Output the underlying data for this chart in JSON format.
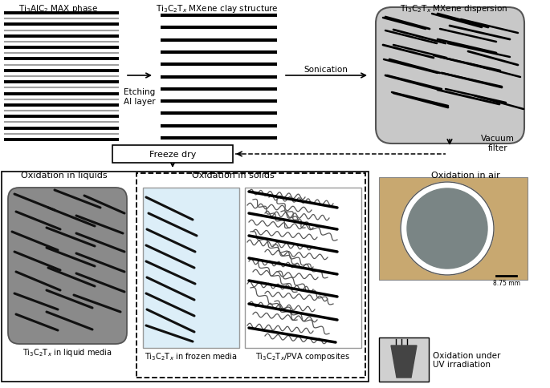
{
  "fig_width": 6.85,
  "fig_height": 4.85,
  "bg_color": "#ffffff",
  "dispersion_bg": "#c8c8c8",
  "liquid_bg": "#8a8a8a",
  "frozen_bg": "#dceef8",
  "title1": "Ti$_3$AlC$_2$ MAX phase",
  "title2": "Ti$_3$C$_2$T$_x$ MXene clay structure",
  "title3": "Ti$_3$C$_2$T$_x$ MXene dispersion",
  "label_etching": "Etching\nAl layer",
  "label_sonication": "Sonication",
  "label_freezedry": "Freeze dry",
  "label_vacuum": "Vacuum\nfilter",
  "label_oxidation_liquids": "Oxidation in liquids",
  "label_oxidation_solids": "Oxidation in solids",
  "label_oxidation_air": "Oxidation in air",
  "label_ti3c2tx_liquid": "Ti$_3$C$_2$T$_x$ in liquid media",
  "label_ti3c2tx_frozen": "Ti$_3$C$_2$T$_x$ in frozen media",
  "label_ti3c2tx_pva": "Ti$_3$C$_2$T$_x$/PVA composites",
  "label_uv": "Oxidation under\nUV irradiation",
  "scale_bar": "8.75 mm"
}
